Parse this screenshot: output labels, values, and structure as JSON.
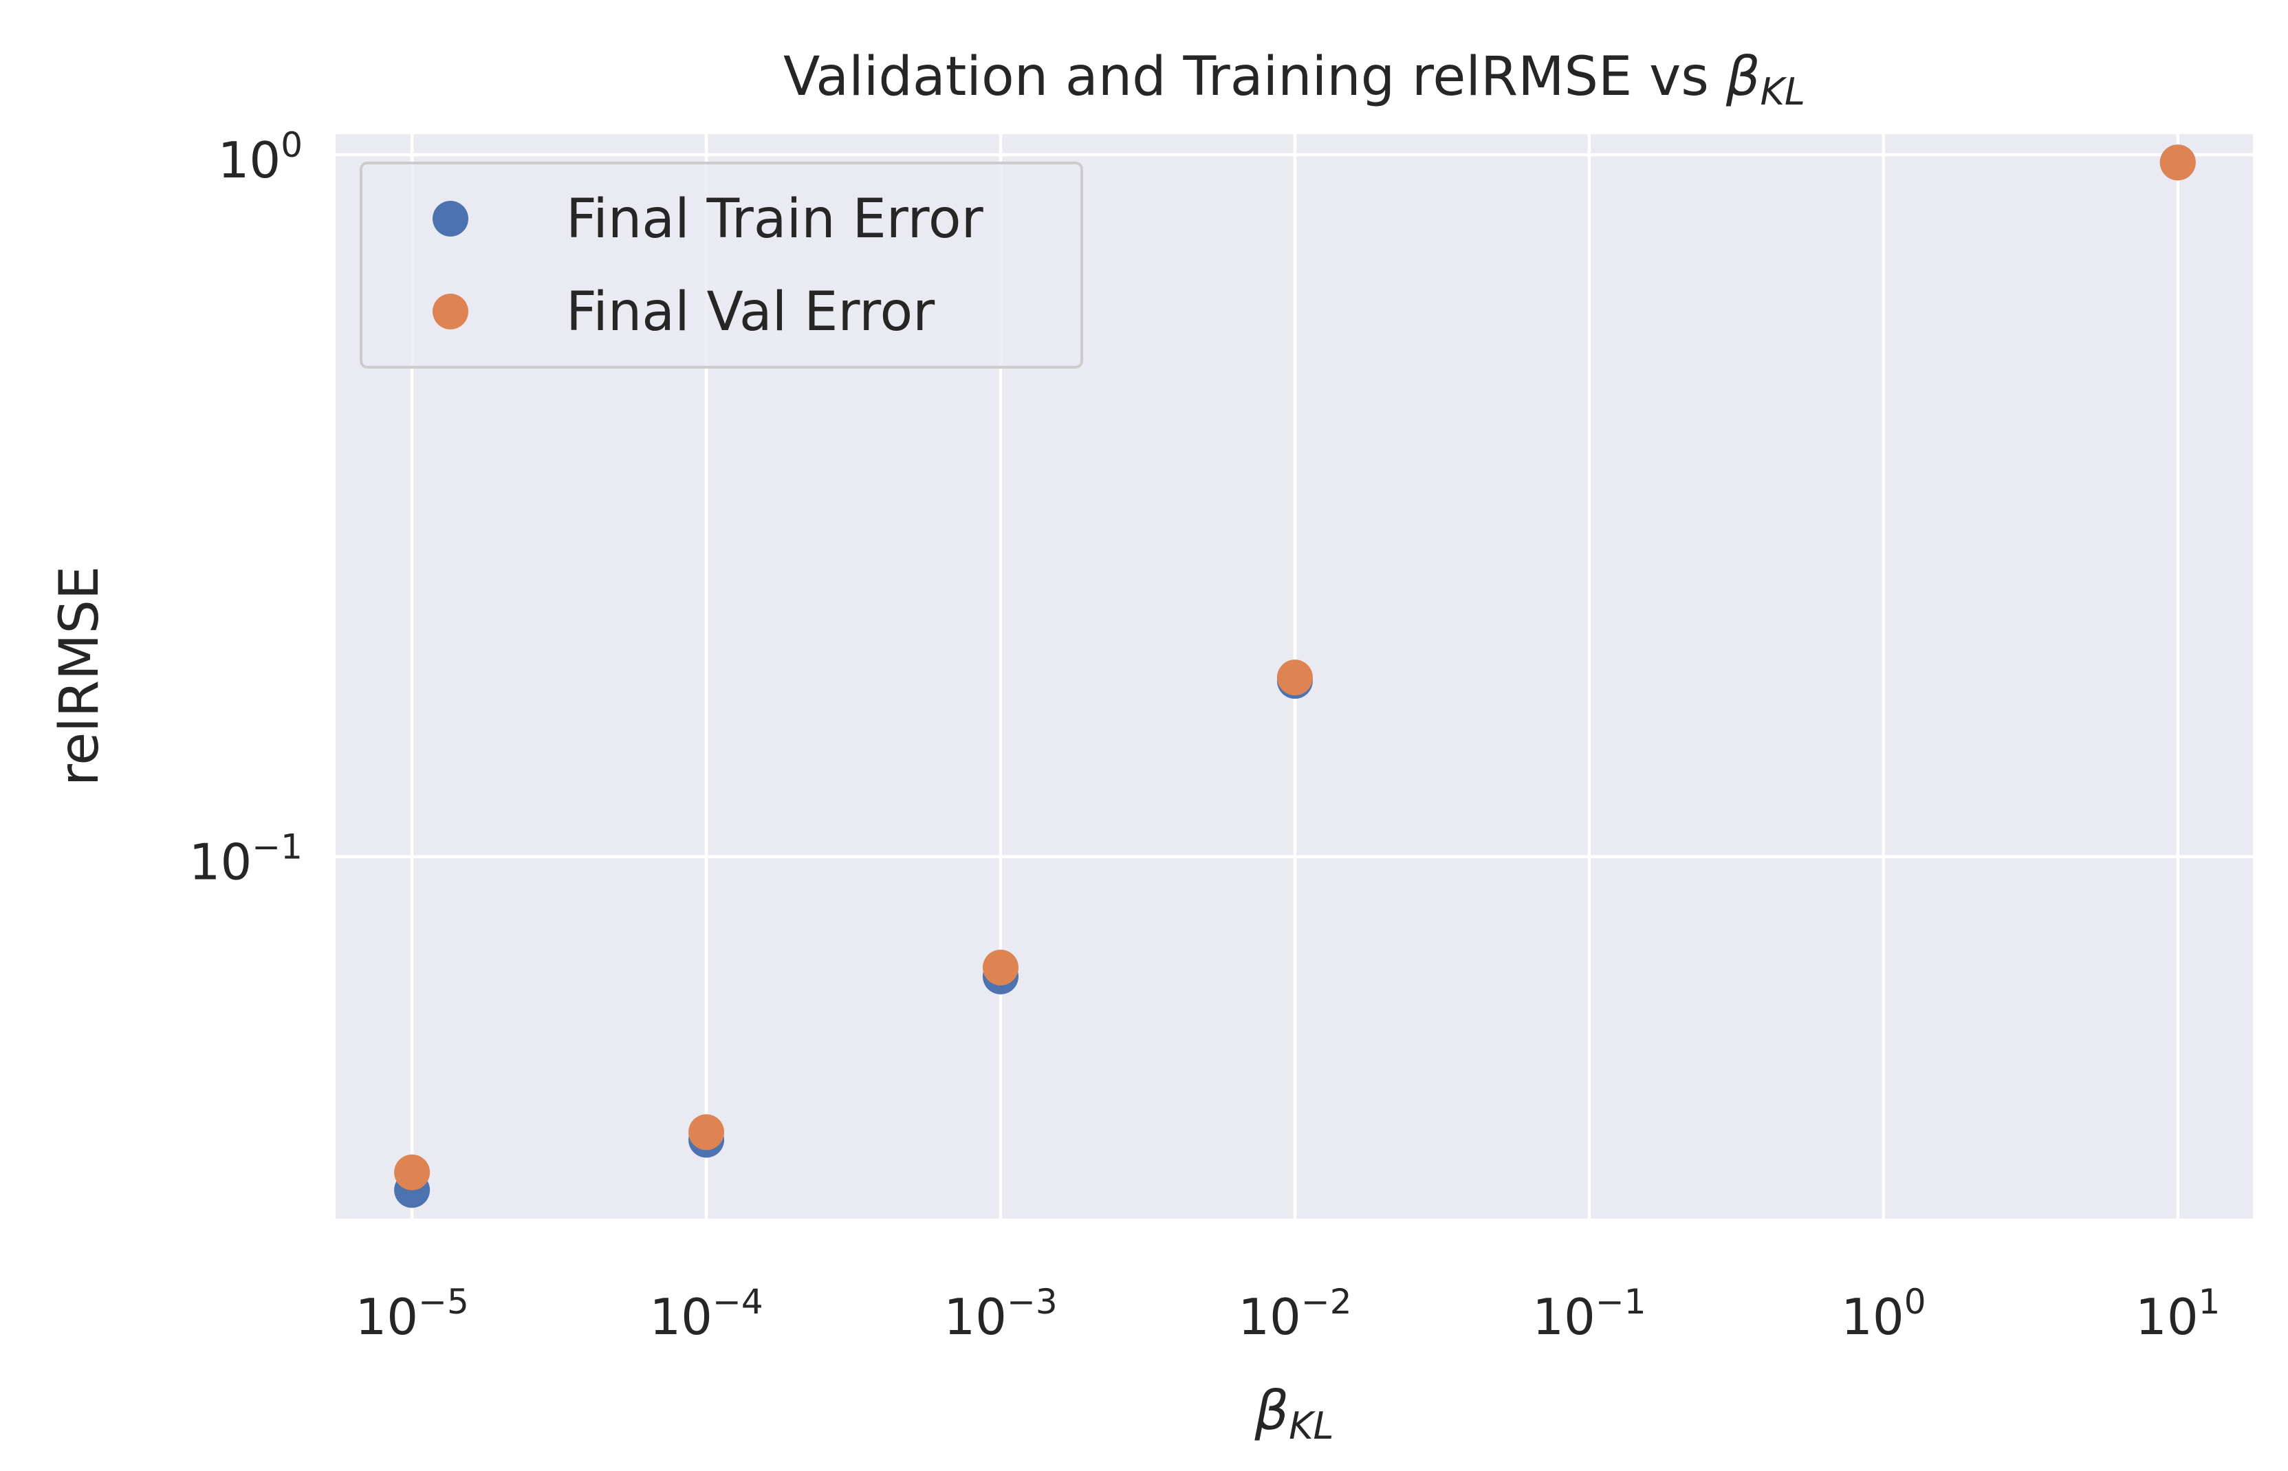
{
  "chart_data": {
    "type": "scatter",
    "title": "Validation and Training relRMSE vs ",
    "title_symbol": "β",
    "title_symbol_sub": "KL",
    "xlabel_symbol": "β",
    "xlabel_symbol_sub": "KL",
    "ylabel": "relRMSE",
    "x_scale": "log",
    "y_scale": "log",
    "xlim": [
      5.5e-06,
      18
    ],
    "ylim": [
      0.0305,
      1.07
    ],
    "x_ticks": [
      {
        "value": 1e-05,
        "base": "10",
        "exp": "−5"
      },
      {
        "value": 0.0001,
        "base": "10",
        "exp": "−4"
      },
      {
        "value": 0.001,
        "base": "10",
        "exp": "−3"
      },
      {
        "value": 0.01,
        "base": "10",
        "exp": "−2"
      },
      {
        "value": 0.1,
        "base": "10",
        "exp": "−1"
      },
      {
        "value": 1,
        "base": "10",
        "exp": "0"
      },
      {
        "value": 10,
        "base": "10",
        "exp": "1"
      }
    ],
    "y_ticks": [
      {
        "value": 0.1,
        "base": "10",
        "exp": "−1"
      },
      {
        "value": 1,
        "base": "10",
        "exp": "0"
      }
    ],
    "grid": true,
    "legend_position": "upper-left",
    "series": [
      {
        "name": "Final Train Error",
        "color": "#4c72b0",
        "points": [
          {
            "x": 1e-05,
            "y": 0.0335
          },
          {
            "x": 0.0001,
            "y": 0.0395
          },
          {
            "x": 0.001,
            "y": 0.0675
          },
          {
            "x": 0.01,
            "y": 0.178
          },
          {
            "x": 10,
            "y": 0.975
          }
        ]
      },
      {
        "name": "Final Val Error",
        "color": "#dd8452",
        "points": [
          {
            "x": 1e-05,
            "y": 0.0355
          },
          {
            "x": 0.0001,
            "y": 0.0405
          },
          {
            "x": 0.001,
            "y": 0.0695
          },
          {
            "x": 0.01,
            "y": 0.18
          },
          {
            "x": 10,
            "y": 0.975
          }
        ]
      }
    ]
  }
}
